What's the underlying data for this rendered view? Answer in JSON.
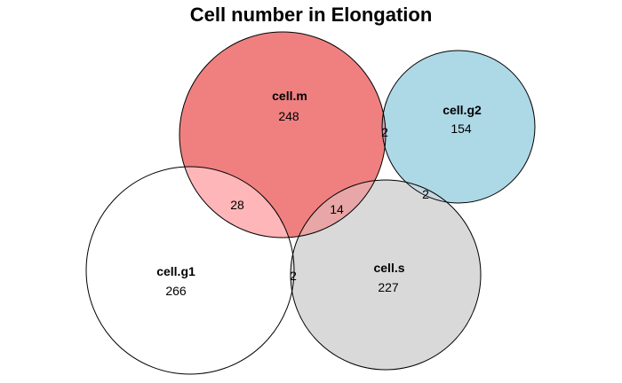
{
  "title": "Cell number in Elongation",
  "sets": {
    "cell_m": {
      "name": "cell.m",
      "count": "248",
      "color": "#f08080"
    },
    "cell_g2": {
      "name": "cell.g2",
      "count": "154",
      "color": "#add8e6"
    },
    "cell_g1": {
      "name": "cell.g1",
      "count": "266",
      "color": "#ffffff"
    },
    "cell_s": {
      "name": "cell.s",
      "count": "227",
      "color": "#d9d9d9"
    }
  },
  "overlaps": {
    "m_g2": "2",
    "g2_s": "2",
    "m_g1": "28",
    "m_s": "14",
    "g1_s": "2"
  },
  "overlap_colors": {
    "m_g1": "#ffb6b9",
    "m_s": "#e8a6a6",
    "m_g2": "#d0a0b0",
    "g2_s": "#c8d8e0"
  }
}
